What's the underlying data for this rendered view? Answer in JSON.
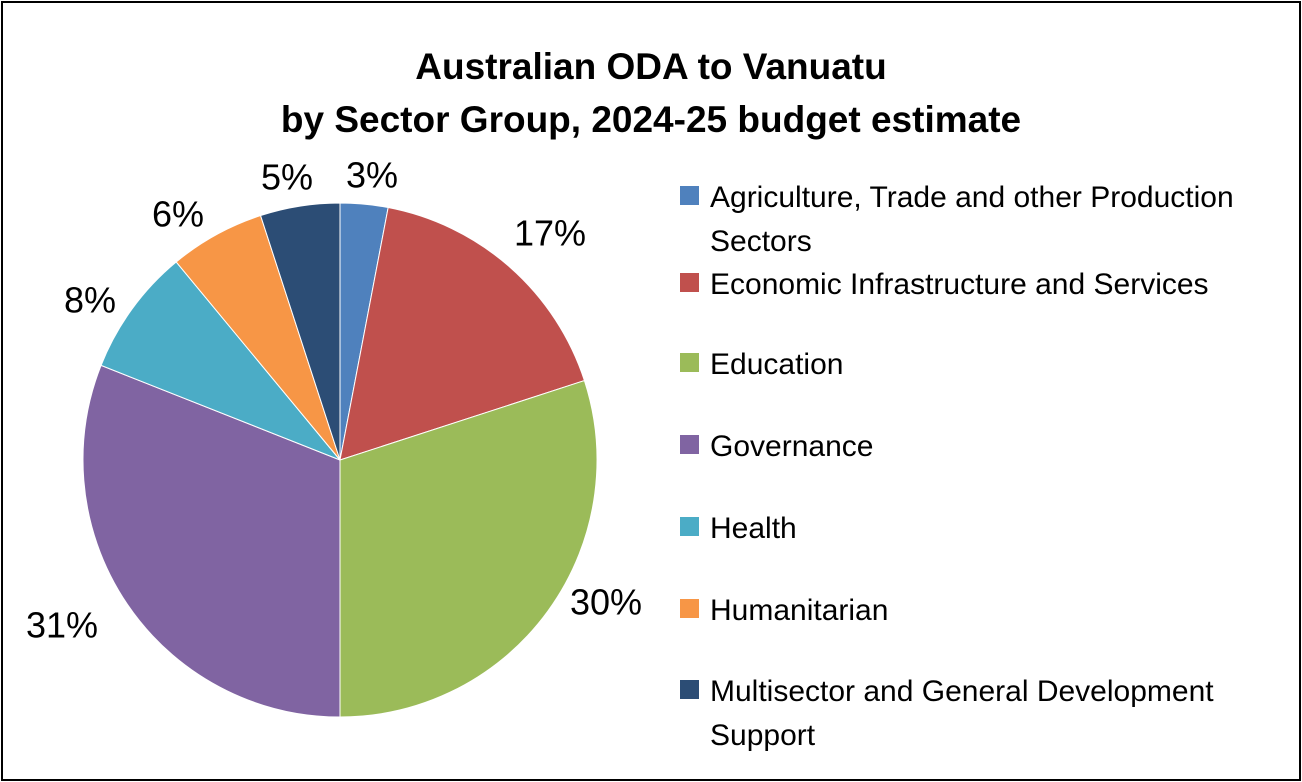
{
  "chart_data": {
    "type": "pie",
    "title": "Australian ODA to Vanuatu",
    "subtitle": "by Sector Group, 2024-25 budget estimate",
    "legend_position": "right",
    "series": [
      {
        "label": "Agriculture, Trade and other Production Sectors",
        "value": 3,
        "data_label": "3%",
        "color": "#4F81BD"
      },
      {
        "label": "Economic Infrastructure and Services",
        "value": 17,
        "data_label": "17%",
        "color": "#C0504D"
      },
      {
        "label": "Education",
        "value": 30,
        "data_label": "30%",
        "color": "#9BBB59"
      },
      {
        "label": "Governance",
        "value": 31,
        "data_label": "31%",
        "color": "#8064A2"
      },
      {
        "label": "Health",
        "value": 8,
        "data_label": "8%",
        "color": "#4BACC6"
      },
      {
        "label": "Humanitarian",
        "value": 6,
        "data_label": "6%",
        "color": "#F79646"
      },
      {
        "label": "Multisector and General Development Support",
        "value": 5,
        "data_label": "5%",
        "color": "#2C4D75"
      }
    ]
  }
}
